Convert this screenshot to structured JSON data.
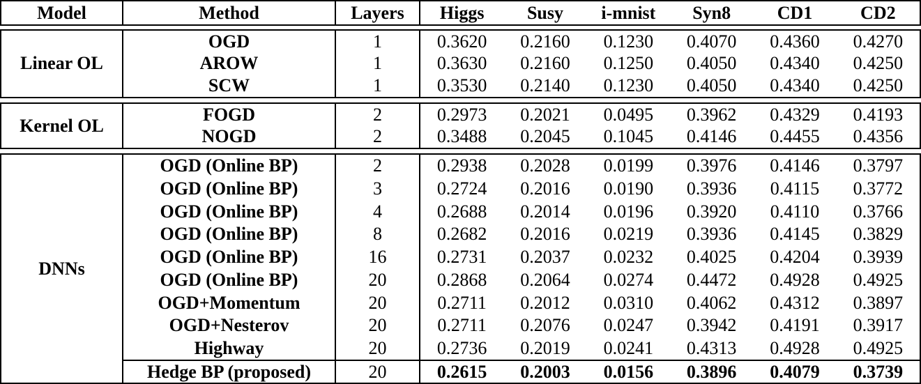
{
  "table": {
    "columns": [
      "Model",
      "Method",
      "Layers",
      "Higgs",
      "Susy",
      "i-mnist",
      "Syn8",
      "CD1",
      "CD2"
    ],
    "sections": [
      {
        "model": "Linear OL",
        "rows": [
          {
            "method": "OGD",
            "layers": "1",
            "values": [
              "0.3620",
              "0.2160",
              "0.1230",
              "0.4070",
              "0.4360",
              "0.4270"
            ],
            "bold_values": false,
            "separator_above": false
          },
          {
            "method": "AROW",
            "layers": "1",
            "values": [
              "0.3630",
              "0.2160",
              "0.1250",
              "0.4050",
              "0.4340",
              "0.4250"
            ],
            "bold_values": false,
            "separator_above": false
          },
          {
            "method": "SCW",
            "layers": "1",
            "values": [
              "0.3530",
              "0.2140",
              "0.1230",
              "0.4050",
              "0.4340",
              "0.4250"
            ],
            "bold_values": false,
            "separator_above": false
          }
        ]
      },
      {
        "model": "Kernel OL",
        "rows": [
          {
            "method": "FOGD",
            "layers": "2",
            "values": [
              "0.2973",
              "0.2021",
              "0.0495",
              "0.3962",
              "0.4329",
              "0.4193"
            ],
            "bold_values": false,
            "separator_above": false
          },
          {
            "method": "NOGD",
            "layers": "2",
            "values": [
              "0.3488",
              "0.2045",
              "0.1045",
              "0.4146",
              "0.4455",
              "0.4356"
            ],
            "bold_values": false,
            "separator_above": false
          }
        ]
      },
      {
        "model": "DNNs",
        "rows": [
          {
            "method": "OGD (Online BP)",
            "layers": "2",
            "values": [
              "0.2938",
              "0.2028",
              "0.0199",
              "0.3976",
              "0.4146",
              "0.3797"
            ],
            "bold_values": false,
            "separator_above": false
          },
          {
            "method": "OGD (Online BP)",
            "layers": "3",
            "values": [
              "0.2724",
              "0.2016",
              "0.0190",
              "0.3936",
              "0.4115",
              "0.3772"
            ],
            "bold_values": false,
            "separator_above": false
          },
          {
            "method": "OGD (Online BP)",
            "layers": "4",
            "values": [
              "0.2688",
              "0.2014",
              "0.0196",
              "0.3920",
              "0.4110",
              "0.3766"
            ],
            "bold_values": false,
            "separator_above": false
          },
          {
            "method": "OGD (Online BP)",
            "layers": "8",
            "values": [
              "0.2682",
              "0.2016",
              "0.0219",
              "0.3936",
              "0.4145",
              "0.3829"
            ],
            "bold_values": false,
            "separator_above": false
          },
          {
            "method": "OGD (Online BP)",
            "layers": "16",
            "values": [
              "0.2731",
              "0.2037",
              "0.0232",
              "0.4025",
              "0.4204",
              "0.3939"
            ],
            "bold_values": false,
            "separator_above": false
          },
          {
            "method": "OGD (Online BP)",
            "layers": "20",
            "values": [
              "0.2868",
              "0.2064",
              "0.0274",
              "0.4472",
              "0.4928",
              "0.4925"
            ],
            "bold_values": false,
            "separator_above": false
          },
          {
            "method": "OGD+Momentum",
            "layers": "20",
            "values": [
              "0.2711",
              "0.2012",
              "0.0310",
              "0.4062",
              "0.4312",
              "0.3897"
            ],
            "bold_values": false,
            "separator_above": false
          },
          {
            "method": "OGD+Nesterov",
            "layers": "20",
            "values": [
              "0.2711",
              "0.2076",
              "0.0247",
              "0.3942",
              "0.4191",
              "0.3917"
            ],
            "bold_values": false,
            "separator_above": false
          },
          {
            "method": "Highway",
            "layers": "20",
            "values": [
              "0.2736",
              "0.2019",
              "0.0241",
              "0.4313",
              "0.4928",
              "0.4925"
            ],
            "bold_values": false,
            "separator_above": false
          },
          {
            "method": "Hedge BP (proposed)",
            "layers": "20",
            "values": [
              "0.2615",
              "0.2003",
              "0.0156",
              "0.3896",
              "0.4079",
              "0.3739"
            ],
            "bold_values": true,
            "separator_above": true
          }
        ]
      }
    ]
  },
  "colors": {
    "border": "#000000",
    "text": "#000000",
    "background": "#ffffff"
  }
}
